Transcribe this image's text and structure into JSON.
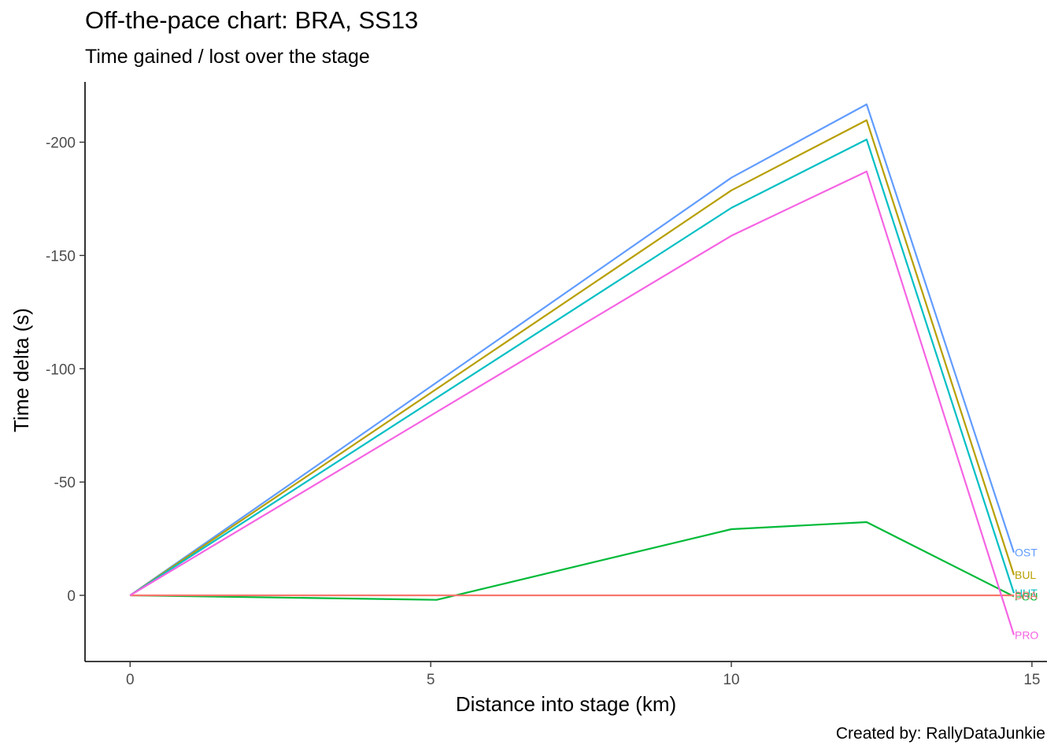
{
  "chart_data": {
    "type": "line",
    "title": "Off-the-pace chart: BRA, SS13",
    "subtitle": "Time gained / lost over the stage",
    "caption": "Created by: RallyDataJunkie",
    "xlabel": "Distance into stage (km)",
    "ylabel": "Time delta (s)",
    "xlim": [
      -0.75,
      15.25
    ],
    "ylim": [
      -226.6,
      29.2
    ],
    "y_reversed": true,
    "x_ticks": [
      0,
      5,
      10,
      15
    ],
    "x_tick_labels": [
      "0",
      "5",
      "10",
      "15"
    ],
    "y_ticks": [
      -200,
      -150,
      -100,
      -50,
      0
    ],
    "y_tick_labels": [
      "-200",
      "-150",
      "-100",
      "-50",
      "0"
    ],
    "grid": false,
    "legend": "none (end-of-line labels)",
    "series": [
      {
        "name": "OST",
        "color": "#619CFF",
        "x": [
          0,
          10.0,
          12.25,
          14.7
        ],
        "y": [
          0,
          -184.3,
          -216.7,
          -18.9
        ]
      },
      {
        "name": "BUL",
        "color": "#B79F00",
        "x": [
          0,
          10.0,
          12.25,
          14.7
        ],
        "y": [
          0,
          -178.7,
          -209.7,
          -9.0
        ]
      },
      {
        "name": "HUT",
        "color": "#00BFC4",
        "x": [
          0,
          10.0,
          12.25,
          14.7
        ],
        "y": [
          0,
          -171.0,
          -201.2,
          -1.0
        ]
      },
      {
        "name": "FOU",
        "color": "#00BA38",
        "x": [
          0,
          5.1,
          10.0,
          12.25,
          14.7
        ],
        "y": [
          0,
          2.0,
          -29.2,
          -32.3,
          0.5
        ]
      },
      {
        "name": "BRA",
        "color": "#F8766D",
        "x": [
          0,
          5.1,
          10.0,
          12.25,
          14.7
        ],
        "y": [
          0,
          0,
          0,
          0,
          0
        ]
      },
      {
        "name": "PRO",
        "color": "#F564E3",
        "x": [
          0,
          10.0,
          12.25,
          14.7
        ],
        "y": [
          0,
          -158.7,
          -187.1,
          17.5
        ]
      }
    ]
  }
}
